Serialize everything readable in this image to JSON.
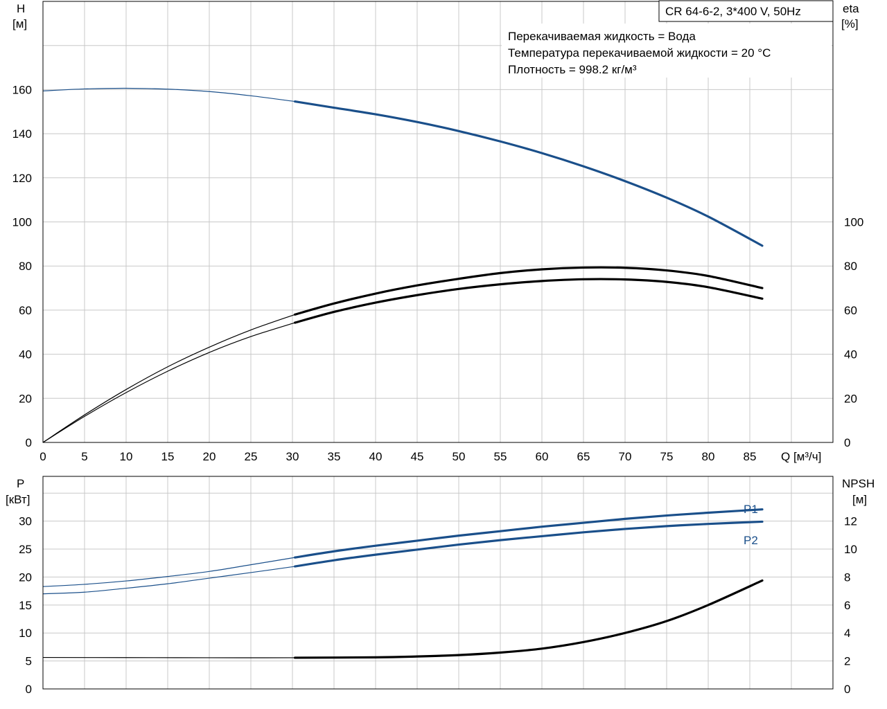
{
  "model": "CR 64-6-2, 3*400 V, 50Hz",
  "info_lines": [
    "Перекачиваемая жидкость = Вода",
    "Температура перекачиваемой жидкости = 20 °C",
    "Плотность = 998.2 кг/м³"
  ],
  "colors": {
    "blue": "#1a4f8a",
    "black": "#000000",
    "grid": "#c8c8c8"
  },
  "chart_data": [
    {
      "type": "line",
      "title": "",
      "xlabel": "Q [м³/ч]",
      "ylabel": "H [м]",
      "y2label": "eta [%]",
      "ylabel_top": "H",
      "ylabel_unit": "[м]",
      "y2label_top": "eta",
      "y2label_unit": "[%]",
      "xlabel_text": "Q [м³/ч]",
      "xlim": [
        0,
        95
      ],
      "ylim": [
        0,
        200
      ],
      "y2lim": [
        0,
        200
      ],
      "x_ticks": [
        0,
        5,
        10,
        15,
        20,
        25,
        30,
        35,
        40,
        45,
        50,
        55,
        60,
        65,
        70,
        75,
        80,
        85
      ],
      "y_ticks": [
        0,
        20,
        40,
        60,
        80,
        100,
        120,
        140,
        160
      ],
      "y2_ticks": [
        0,
        20,
        40,
        60,
        80,
        100
      ],
      "grid": true,
      "duty_start_x": 30.3,
      "series": [
        {
          "id": "H",
          "axis": "left",
          "color": "#1a4f8a",
          "x": [
            0,
            5,
            10,
            15,
            20,
            25,
            30.3,
            35,
            40,
            45,
            50,
            55,
            60,
            65,
            70,
            75,
            80,
            86.5
          ],
          "y": [
            159.4,
            160.3,
            160.6,
            160.2,
            159.1,
            157.2,
            154.6,
            151.8,
            148.8,
            145.3,
            141.2,
            136.5,
            131.2,
            125.2,
            118.5,
            111.0,
            102.4,
            89.2
          ]
        },
        {
          "id": "eta_upper",
          "axis": "right",
          "color": "#000000",
          "x": [
            0,
            5,
            10,
            15,
            20,
            25,
            30.3,
            35,
            40,
            45,
            50,
            55,
            60,
            65,
            70,
            75,
            80,
            86.5
          ],
          "y": [
            0,
            12.5,
            24.0,
            34.3,
            43.2,
            51.0,
            58.0,
            63.0,
            67.5,
            71.2,
            74.2,
            76.8,
            78.5,
            79.3,
            79.2,
            78.0,
            75.5,
            70.0
          ]
        },
        {
          "id": "eta_lower",
          "axis": "right",
          "color": "#000000",
          "x": [
            0,
            5,
            10,
            15,
            20,
            25,
            30.3,
            35,
            40,
            45,
            50,
            55,
            60,
            65,
            70,
            75,
            80,
            86.5
          ],
          "y": [
            0,
            11.8,
            22.6,
            32.3,
            40.8,
            48.0,
            54.3,
            59.2,
            63.4,
            66.8,
            69.6,
            71.7,
            73.2,
            74.0,
            73.9,
            72.8,
            70.4,
            65.2
          ]
        }
      ]
    },
    {
      "type": "line",
      "title": "",
      "ylabel": "P [кВт]",
      "y2label": "NPSH [м]",
      "ylabel_top": "P",
      "ylabel_unit": "[кВт]",
      "y2label_top": "NPSH",
      "y2label_unit": "[м]",
      "xlim": [
        0,
        95
      ],
      "ylim": [
        0,
        38
      ],
      "y2lim": [
        0,
        15.2
      ],
      "y_ticks": [
        0,
        5,
        10,
        15,
        20,
        25,
        30
      ],
      "y2_ticks": [
        0,
        2,
        4,
        6,
        8,
        10,
        12
      ],
      "grid": true,
      "duty_start_x": 30.3,
      "series": [
        {
          "id": "P1",
          "name": "P1",
          "axis": "left",
          "color": "#1a4f8a",
          "x": [
            0,
            5,
            10,
            15,
            20,
            25,
            30.3,
            35,
            40,
            45,
            50,
            55,
            60,
            65,
            70,
            75,
            80,
            86.5
          ],
          "y": [
            18.3,
            18.7,
            19.3,
            20.1,
            21.0,
            22.2,
            23.5,
            24.6,
            25.6,
            26.5,
            27.4,
            28.2,
            29.0,
            29.7,
            30.4,
            31.0,
            31.5,
            32.1
          ]
        },
        {
          "id": "P2",
          "name": "P2",
          "axis": "left",
          "color": "#1a4f8a",
          "x": [
            0,
            5,
            10,
            15,
            20,
            25,
            30.3,
            35,
            40,
            45,
            50,
            55,
            60,
            65,
            70,
            75,
            80,
            86.5
          ],
          "y": [
            17.0,
            17.3,
            18.0,
            18.8,
            19.8,
            20.8,
            21.9,
            23.0,
            24.0,
            24.9,
            25.8,
            26.6,
            27.3,
            28.0,
            28.6,
            29.1,
            29.5,
            29.9
          ]
        },
        {
          "id": "NPSH",
          "axis": "right",
          "color": "#000000",
          "x": [
            0,
            10,
            20,
            30.3,
            40,
            45,
            50,
            55,
            60,
            65,
            70,
            75,
            80,
            86.5
          ],
          "y": [
            2.25,
            2.24,
            2.23,
            2.23,
            2.26,
            2.32,
            2.42,
            2.6,
            2.88,
            3.35,
            4.0,
            4.85,
            6.0,
            7.75
          ]
        }
      ]
    }
  ]
}
